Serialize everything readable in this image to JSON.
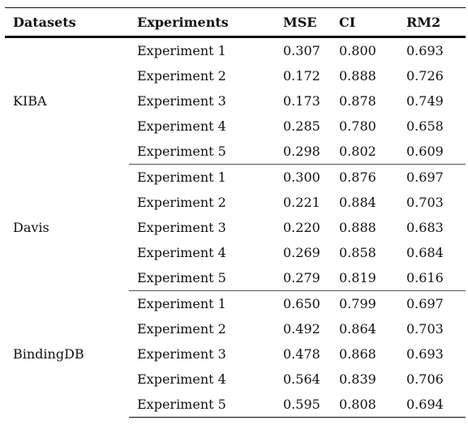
{
  "headers": {
    "datasets": "Datasets",
    "experiments": "Experiments",
    "mse": "MSE",
    "ci": "CI",
    "rm2": "RM2"
  },
  "groups": [
    {
      "name": "KIBA",
      "rows": [
        {
          "experiment": "Experiment 1",
          "mse": "0.307",
          "ci": "0.800",
          "rm2": "0.693"
        },
        {
          "experiment": "Experiment 2",
          "mse": "0.172",
          "ci": "0.888",
          "rm2": "0.726"
        },
        {
          "experiment": "Experiment 3",
          "mse": "0.173",
          "ci": "0.878",
          "rm2": "0.749"
        },
        {
          "experiment": "Experiment 4",
          "mse": "0.285",
          "ci": "0.780",
          "rm2": "0.658"
        },
        {
          "experiment": "Experiment 5",
          "mse": "0.298",
          "ci": "0.802",
          "rm2": "0.609"
        }
      ]
    },
    {
      "name": "Davis",
      "rows": [
        {
          "experiment": "Experiment 1",
          "mse": "0.300",
          "ci": "0.876",
          "rm2": "0.697"
        },
        {
          "experiment": "Experiment 2",
          "mse": "0.221",
          "ci": "0.884",
          "rm2": "0.703"
        },
        {
          "experiment": "Experiment 3",
          "mse": "0.220",
          "ci": "0.888",
          "rm2": "0.683"
        },
        {
          "experiment": "Experiment 4",
          "mse": "0.269",
          "ci": "0.858",
          "rm2": "0.684"
        },
        {
          "experiment": "Experiment 5",
          "mse": "0.279",
          "ci": "0.819",
          "rm2": "0.616"
        }
      ]
    },
    {
      "name": "BindingDB",
      "rows": [
        {
          "experiment": "Experiment 1",
          "mse": "0.650",
          "ci": "0.799",
          "rm2": "0.697"
        },
        {
          "experiment": "Experiment 2",
          "mse": "0.492",
          "ci": "0.864",
          "rm2": "0.703"
        },
        {
          "experiment": "Experiment 3",
          "mse": "0.478",
          "ci": "0.868",
          "rm2": "0.693"
        },
        {
          "experiment": "Experiment 4",
          "mse": "0.564",
          "ci": "0.839",
          "rm2": "0.706"
        },
        {
          "experiment": "Experiment 5",
          "mse": "0.595",
          "ci": "0.808",
          "rm2": "0.694"
        }
      ]
    }
  ]
}
